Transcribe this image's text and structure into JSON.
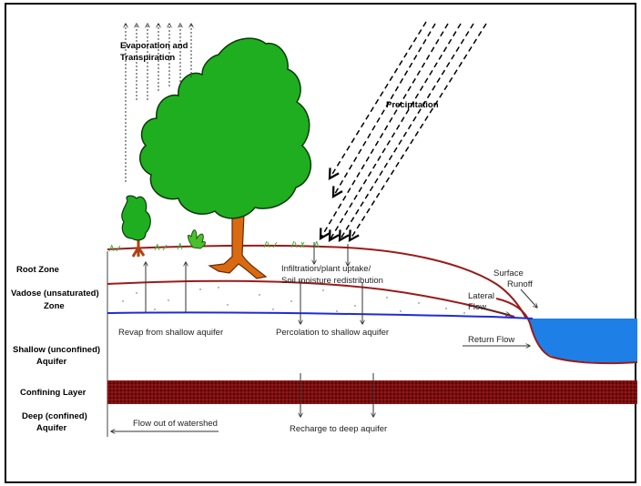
{
  "zones": {
    "root_zone": "Root Zone",
    "vadose_l1": "Vadose (unsaturated)",
    "vadose_l2": "Zone",
    "shallow_l1": "Shallow (unconfined)",
    "shallow_l2": "Aquifer",
    "confining": "Confining Layer",
    "deep_l1": "Deep (confined)",
    "deep_l2": "Aquifer"
  },
  "processes": {
    "evap_l1": "Evaporation and",
    "evap_l2": "Transpiration",
    "precipitation": "Precipitation",
    "infiltration_l1": "Infiltration/plant uptake/",
    "infiltration_l2": "Soil moisture redistribution",
    "surface_runoff_l1": "Surface",
    "surface_runoff_l2": "Runoff",
    "lateral_flow_l1": "Lateral",
    "lateral_flow_l2": "Flow",
    "revap": "Revap from shallow aquifer",
    "percolation": "Percolation to shallow aquifer",
    "return_flow": "Return Flow",
    "flow_out": "Flow out of watershed",
    "recharge": "Recharge to deep aquifer"
  },
  "colors": {
    "soil_line": "#9a1b1b",
    "water_table": "#1e2bd8",
    "water_body": "#1e7fe6",
    "confining_layer": "#8b1414",
    "tree_foliage": "#1fae1f",
    "tree_trunk": "#d96a12"
  }
}
